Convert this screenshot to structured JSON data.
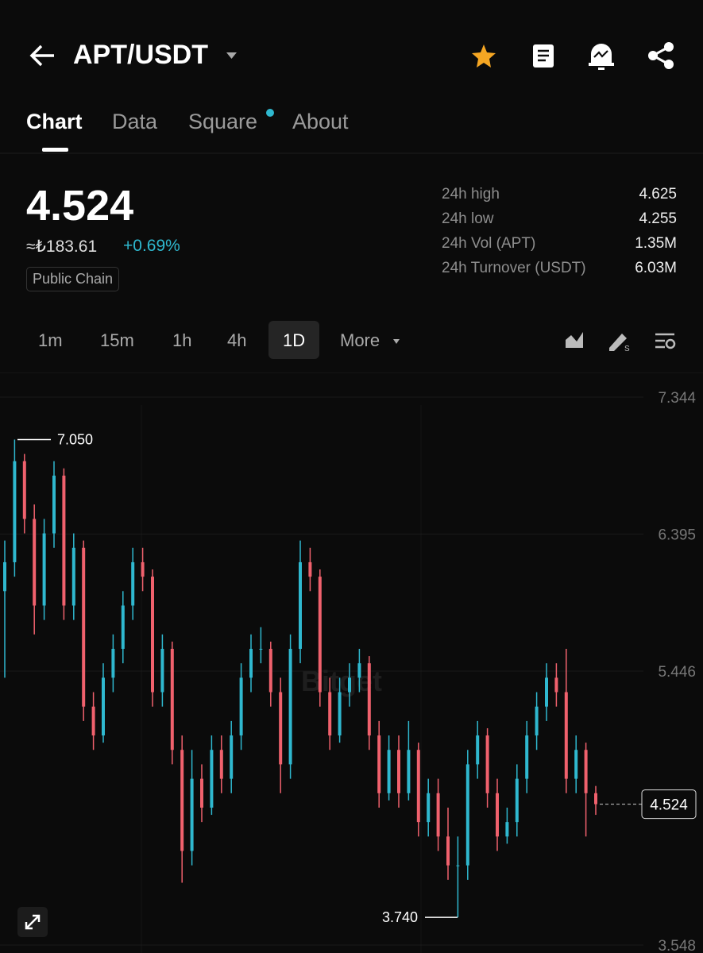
{
  "header": {
    "title": "APT/USDT"
  },
  "tabs": [
    "Chart",
    "Data",
    "Square",
    "About"
  ],
  "ticker": {
    "price": "4.524",
    "fiat": "≈₺183.61",
    "change": "+0.69%",
    "tag": "Public Chain"
  },
  "stats": [
    {
      "label": "24h high",
      "value": "4.625"
    },
    {
      "label": "24h low",
      "value": "4.255"
    },
    {
      "label": "24h Vol (APT)",
      "value": "1.35M"
    },
    {
      "label": "24h Turnover (USDT)",
      "value": "6.03M"
    }
  ],
  "intervals": [
    "1m",
    "15m",
    "1h",
    "4h",
    "1D",
    "More"
  ],
  "chart_data": {
    "type": "candlestick",
    "watermark": "Bitget",
    "up_color": "#2fb8cf",
    "down_color": "#f0616d",
    "ylim": [
      3.548,
      7.344
    ],
    "yticks": [
      7.344,
      6.395,
      5.446,
      3.548
    ],
    "grid": true,
    "open": [
      6.0,
      6.2,
      6.9,
      6.5,
      5.9,
      6.4,
      6.8,
      5.9,
      6.3,
      5.2,
      5.0,
      5.4,
      5.6,
      5.9,
      6.2,
      6.1,
      5.3,
      5.6,
      4.9,
      4.2,
      4.7,
      4.5,
      4.9,
      4.7,
      5.0,
      5.4,
      5.6,
      5.6,
      5.3,
      4.8,
      5.6,
      6.2,
      6.1,
      5.3,
      5.0,
      5.3,
      5.4,
      5.5,
      5.0,
      4.6,
      4.9,
      4.6,
      4.9,
      4.4,
      4.6,
      4.3,
      4.1,
      4.1,
      4.8,
      5.0,
      4.6,
      4.3,
      4.4,
      4.7,
      5.0,
      5.2,
      5.4,
      5.3,
      4.7,
      4.9,
      4.6
    ],
    "high": [
      6.35,
      7.05,
      6.95,
      6.6,
      6.5,
      6.9,
      6.85,
      6.4,
      6.35,
      5.3,
      5.5,
      5.7,
      6.0,
      6.3,
      6.3,
      6.15,
      5.7,
      5.65,
      5.0,
      4.9,
      4.8,
      5.0,
      5.0,
      5.1,
      5.5,
      5.7,
      5.75,
      5.65,
      5.4,
      5.7,
      6.35,
      6.3,
      6.15,
      5.4,
      5.4,
      5.5,
      5.6,
      5.55,
      5.1,
      5.0,
      5.0,
      5.1,
      4.95,
      4.7,
      4.7,
      4.5,
      4.3,
      4.9,
      5.1,
      5.05,
      4.7,
      4.5,
      4.8,
      5.1,
      5.3,
      5.5,
      5.5,
      5.6,
      5.0,
      4.95,
      4.65
    ],
    "low": [
      5.4,
      6.1,
      6.4,
      5.7,
      5.8,
      6.3,
      5.8,
      5.8,
      5.1,
      4.9,
      4.95,
      5.3,
      5.5,
      5.8,
      6.0,
      5.2,
      5.2,
      4.8,
      3.98,
      4.1,
      4.4,
      4.45,
      4.6,
      4.6,
      4.9,
      5.3,
      5.5,
      5.2,
      4.6,
      4.7,
      5.5,
      6.0,
      5.2,
      4.9,
      4.95,
      5.2,
      5.3,
      4.9,
      4.5,
      4.55,
      4.5,
      4.55,
      4.3,
      4.3,
      4.2,
      4.0,
      3.74,
      4.0,
      4.7,
      4.5,
      4.2,
      4.25,
      4.3,
      4.6,
      4.9,
      5.1,
      5.2,
      4.6,
      4.6,
      4.3,
      4.45
    ],
    "close": [
      6.2,
      6.9,
      6.5,
      5.9,
      6.4,
      6.8,
      5.9,
      6.3,
      5.2,
      5.0,
      5.4,
      5.6,
      5.9,
      6.2,
      6.1,
      5.3,
      5.6,
      4.9,
      4.2,
      4.7,
      4.5,
      4.9,
      4.7,
      5.0,
      5.4,
      5.6,
      5.6,
      5.3,
      4.8,
      5.6,
      6.2,
      6.1,
      5.3,
      5.0,
      5.3,
      5.4,
      5.5,
      5.0,
      4.6,
      4.9,
      4.6,
      4.9,
      4.4,
      4.6,
      4.3,
      4.1,
      4.1,
      4.8,
      5.0,
      4.6,
      4.3,
      4.4,
      4.7,
      5.0,
      5.2,
      5.4,
      5.3,
      4.7,
      4.9,
      4.6,
      4.524
    ],
    "high_marker": {
      "value": 7.05,
      "label": "7.050"
    },
    "low_marker": {
      "value": 3.74,
      "label": "3.740"
    },
    "last_price": 4.524
  }
}
